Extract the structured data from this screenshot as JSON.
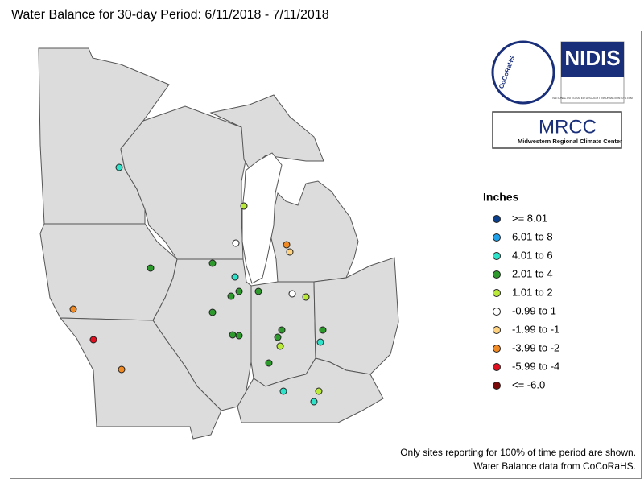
{
  "title": "Water Balance for 30-day Period: 6/11/2018 - 7/11/2018",
  "legend": {
    "title": "Inches",
    "items": [
      {
        "label": ">= 8.01",
        "color": "#0b3f8c"
      },
      {
        "label": "6.01 to 8",
        "color": "#1fa0e8"
      },
      {
        "label": "4.01 to 6",
        "color": "#2ee3c9"
      },
      {
        "label": "2.01 to 4",
        "color": "#2e9a2e"
      },
      {
        "label": "1.01 to 2",
        "color": "#b9ea3a"
      },
      {
        "label": "-0.99 to 1",
        "color": "#ffffff"
      },
      {
        "label": "-1.99 to -1",
        "color": "#ffd27f"
      },
      {
        "label": "-3.99 to -2",
        "color": "#f08a24"
      },
      {
        "label": "-5.99 to -4",
        "color": "#e01020"
      },
      {
        "label": "<= -6.0",
        "color": "#7a0a0a"
      }
    ]
  },
  "logos": {
    "cocorahs": "CoCoRaHS",
    "nidis": "NIDIS",
    "nidis_sub": "NATIONAL INTEGRATED DROUGHT INFORMATION SYSTEM",
    "mrcc": "MRCC",
    "mrcc_sub": "Midwestern Regional Climate Center"
  },
  "notes": [
    "Only sites reporting for 100% of time period are shown.",
    "Water Balance data from CoCoRaHS."
  ]
}
